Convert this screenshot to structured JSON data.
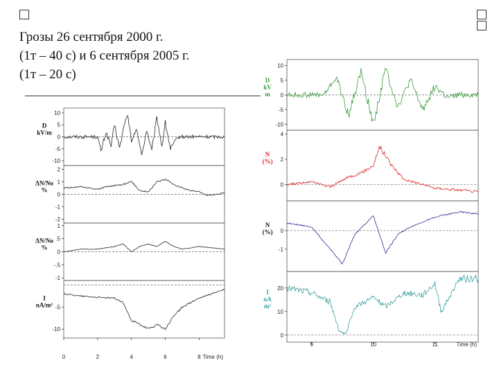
{
  "title": {
    "line1": "Грозы 26 сентября 2000 г.",
    "line2": "(1т – 40 с) и 6 сентября 2005 г.",
    "line3": "(1т – 20 с)"
  },
  "colors": {
    "left_trace": "#222222",
    "right_D": "#3c9a3c",
    "right_N_red": "#e02020",
    "right_N_blue": "#2a2a90",
    "right_I": "#3aa0a0"
  },
  "chart_data": [
    {
      "type": "line",
      "panel": "left",
      "x_label": "Time (h)",
      "x_ticks": [
        "0",
        "2",
        "4",
        "6",
        "8"
      ],
      "xlim": [
        0,
        9.5
      ],
      "grid": false,
      "series": [
        {
          "name": "D kV/m",
          "label_lines": [
            "D",
            "kV/m"
          ],
          "ylim": [
            -12,
            12
          ],
          "y_ticks": [
            "10",
            "5",
            "0",
            "-5",
            "-10"
          ],
          "x": [
            0,
            1.5,
            2.0,
            2.2,
            2.5,
            2.8,
            3.0,
            3.3,
            3.6,
            3.8,
            4.0,
            4.3,
            4.6,
            4.9,
            5.2,
            5.5,
            5.8,
            6.0,
            6.3,
            6.6,
            6.8,
            7.0,
            8.0,
            9.5
          ],
          "values": [
            0,
            0,
            0,
            -6,
            2,
            -4,
            5,
            -5,
            6,
            9,
            -3,
            4,
            -8,
            3,
            -6,
            8,
            -4,
            6,
            -5,
            -2,
            0,
            0,
            0,
            0
          ]
        },
        {
          "name": "ΔN/No %",
          "label_lines": [
            "ΔN/No",
            "%"
          ],
          "ylim": [
            -2.3,
            2.3
          ],
          "y_ticks": [
            "2",
            "1",
            "0",
            "-1",
            "-2"
          ],
          "x": [
            0,
            1.0,
            2.0,
            2.5,
            3.0,
            3.5,
            4.0,
            4.5,
            5.0,
            5.5,
            6.0,
            6.5,
            7.0,
            7.5,
            8.0,
            8.5,
            9.5
          ],
          "values": [
            0.5,
            0.6,
            0.4,
            0.6,
            0.7,
            0.8,
            1.0,
            0.3,
            0.2,
            1.0,
            1.2,
            0.8,
            0.5,
            0.3,
            0.2,
            -0.1,
            0.1
          ]
        },
        {
          "name": "ΔN/No %",
          "label_lines": [
            "ΔN/No",
            "%"
          ],
          "ylim": [
            -1.1,
            1.1
          ],
          "y_ticks": [
            "1",
            ".5",
            "0",
            "-.5",
            "-1"
          ],
          "x": [
            0,
            1.0,
            2.0,
            3.0,
            3.5,
            4.0,
            4.5,
            5.0,
            5.5,
            6.0,
            6.5,
            7.0,
            8.0,
            9.5
          ],
          "values": [
            0.0,
            0.1,
            0.1,
            0.2,
            0.3,
            0.0,
            0.2,
            0.3,
            0.2,
            0.4,
            0.2,
            0.1,
            0.2,
            0.1
          ]
        },
        {
          "name": "I nA/m²",
          "label_lines": [
            "I",
            "nA/m²"
          ],
          "ylim": [
            -12,
            1
          ],
          "y_ticks": [
            "-5",
            "-10"
          ],
          "x": [
            0,
            1.0,
            2.0,
            3.0,
            3.5,
            4.0,
            4.5,
            5.0,
            5.5,
            6.0,
            6.5,
            7.0,
            8.0,
            9.5
          ],
          "values": [
            -2,
            -2.5,
            -2.8,
            -3,
            -4,
            -8,
            -9,
            -10,
            -9,
            -10,
            -7,
            -5,
            -3,
            -1
          ]
        }
      ]
    },
    {
      "type": "line",
      "panel": "right",
      "x_label": "Time (h)",
      "x_ticks": [
        "9",
        "10",
        "11"
      ],
      "xlim": [
        8.6,
        11.7
      ],
      "grid": false,
      "series": [
        {
          "name": "D kV/m",
          "label_lines": [
            "D",
            "kV",
            "m"
          ],
          "ylim": [
            -12,
            12
          ],
          "y_ticks": [
            "10",
            "5",
            "0",
            "-5",
            "-10"
          ],
          "x": [
            8.6,
            9.2,
            9.4,
            9.6,
            9.8,
            10.0,
            10.2,
            10.4,
            10.6,
            10.8,
            11.0,
            11.2,
            11.4,
            11.7
          ],
          "values": [
            0,
            0,
            6,
            -7,
            8,
            -10,
            9,
            -4,
            5,
            -5,
            3,
            -1,
            0,
            0
          ]
        },
        {
          "name": "N (%)",
          "label_lines": [
            "N",
            "(%)"
          ],
          "ylim": [
            -1.3,
            4.3
          ],
          "y_ticks": [
            "4",
            "2",
            "0"
          ],
          "x": [
            8.6,
            9.0,
            9.3,
            9.6,
            9.8,
            10.0,
            10.1,
            10.3,
            10.5,
            10.8,
            11.0,
            11.3,
            11.7
          ],
          "values": [
            0,
            0.2,
            -0.2,
            0.6,
            0.9,
            1.5,
            3.0,
            1.5,
            0.4,
            0,
            -0.3,
            -0.4,
            -0.6
          ]
        },
        {
          "name": "N (%)",
          "label_lines": [
            "N",
            "(%)"
          ],
          "ylim": [
            -2.2,
            1.6
          ],
          "y_ticks": [
            "0",
            "-1"
          ],
          "x": [
            8.6,
            9.0,
            9.3,
            9.5,
            9.7,
            10.0,
            10.2,
            10.4,
            10.6,
            10.9,
            11.1,
            11.4,
            11.7
          ],
          "values": [
            0.4,
            0.2,
            -1.0,
            -1.8,
            -0.2,
            0.8,
            -1.2,
            -0.2,
            0.2,
            0.6,
            0.8,
            1.0,
            0.9
          ]
        },
        {
          "name": "I nA/m²",
          "label_lines": [
            "I",
            "nA",
            "m²"
          ],
          "ylim": [
            -3,
            27
          ],
          "y_ticks": [
            "20",
            "10",
            "0"
          ],
          "x": [
            8.6,
            9.0,
            9.3,
            9.45,
            9.55,
            9.7,
            10.0,
            10.2,
            10.5,
            10.8,
            11.0,
            11.1,
            11.4,
            11.7
          ],
          "values": [
            20,
            18,
            14,
            2,
            0,
            12,
            16,
            12,
            18,
            17,
            22,
            10,
            24,
            24
          ]
        }
      ]
    }
  ]
}
